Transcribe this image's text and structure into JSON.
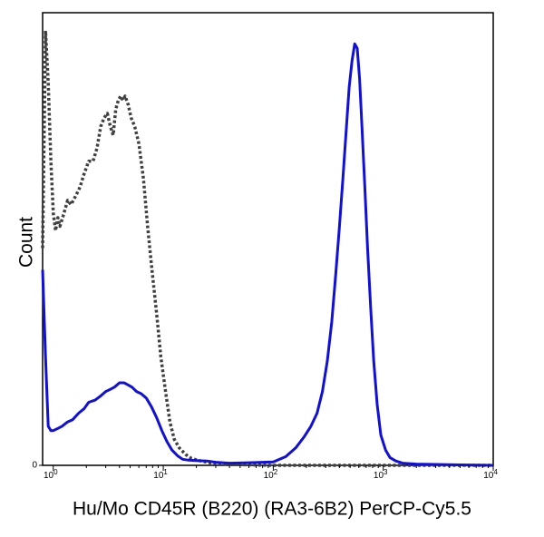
{
  "chart_data": {
    "type": "line",
    "title": "",
    "xlabel": "Hu/Mo CD45R (B220) (RA3-6B2) PerCP-Cy5.5",
    "ylabel": "Count",
    "x_scale": "log",
    "xlim": [
      0.8,
      10000
    ],
    "ylim": [
      0,
      100
    ],
    "x_ticks": [
      {
        "base": "10",
        "exp": "0",
        "value": 1
      },
      {
        "base": "10",
        "exp": "1",
        "value": 10
      },
      {
        "base": "10",
        "exp": "2",
        "value": 100
      },
      {
        "base": "10",
        "exp": "3",
        "value": 1000
      },
      {
        "base": "10",
        "exp": "4",
        "value": 10000
      }
    ],
    "y_ticks": [
      {
        "label": "0",
        "value": 0
      }
    ],
    "grid": false,
    "legend": "none",
    "series": [
      {
        "color": "#404040",
        "style": "dotted",
        "x": [
          0.8,
          0.85,
          0.9,
          0.95,
          1.0,
          1.05,
          1.1,
          1.15,
          1.25,
          1.35,
          1.45,
          1.6,
          1.75,
          1.9,
          2.1,
          2.3,
          2.5,
          2.7,
          2.9,
          3.1,
          3.3,
          3.5,
          3.7,
          3.9,
          4.1,
          4.3,
          4.5,
          4.8,
          5.1,
          5.5,
          6.0,
          6.6,
          7.2,
          7.9,
          8.7,
          9.5,
          10.5,
          11.5,
          12.6,
          14,
          16,
          18,
          21,
          25,
          30,
          40,
          60,
          100,
          1000,
          10000
        ],
        "y": [
          50,
          100,
          88,
          70,
          58,
          54,
          57,
          55,
          58,
          61,
          60,
          62,
          64,
          67,
          70,
          70,
          73,
          78,
          80,
          81,
          78,
          76,
          82,
          84,
          85,
          84,
          85,
          83,
          80,
          78,
          74,
          66,
          55,
          45,
          35,
          25,
          17,
          10,
          6,
          4,
          2.5,
          1.6,
          1.1,
          0.7,
          0.4,
          0.2,
          0.1,
          0,
          0,
          0
        ]
      },
      {
        "color": "#1010d8",
        "style": "solid",
        "x": [
          0.8,
          0.85,
          0.9,
          0.95,
          1.0,
          1.1,
          1.2,
          1.35,
          1.5,
          1.7,
          1.9,
          2.1,
          2.4,
          2.7,
          3.0,
          3.3,
          3.6,
          4.0,
          4.4,
          4.8,
          5.2,
          5.7,
          6.3,
          7.0,
          7.8,
          8.7,
          9.7,
          10.8,
          12,
          13.5,
          15,
          17,
          20,
          25,
          30,
          40,
          60,
          100,
          130,
          160,
          190,
          220,
          250,
          280,
          310,
          340,
          370,
          400,
          430,
          460,
          490,
          520,
          550,
          580,
          610,
          640,
          680,
          720,
          770,
          820,
          880,
          950,
          1050,
          1150,
          1300,
          1500,
          2000,
          3000,
          5000,
          10000
        ],
        "y": [
          45,
          25,
          9,
          8,
          8,
          8.5,
          9,
          10,
          10.5,
          12,
          13,
          14.5,
          15,
          16,
          17,
          17.5,
          18,
          19,
          19,
          18.5,
          18,
          17,
          16.5,
          15.5,
          13.5,
          11,
          8,
          5.5,
          3.5,
          2.2,
          1.4,
          1.2,
          1.1,
          1,
          0.7,
          0.5,
          0.6,
          0.8,
          2,
          4,
          6.5,
          9,
          12,
          17,
          24,
          33,
          44,
          55,
          66,
          77,
          87,
          93,
          97,
          96,
          89,
          78,
          64,
          50,
          36,
          24,
          14,
          7,
          3.5,
          1.8,
          1,
          0.5,
          0.3,
          0.2,
          0.1,
          0
        ]
      }
    ]
  }
}
